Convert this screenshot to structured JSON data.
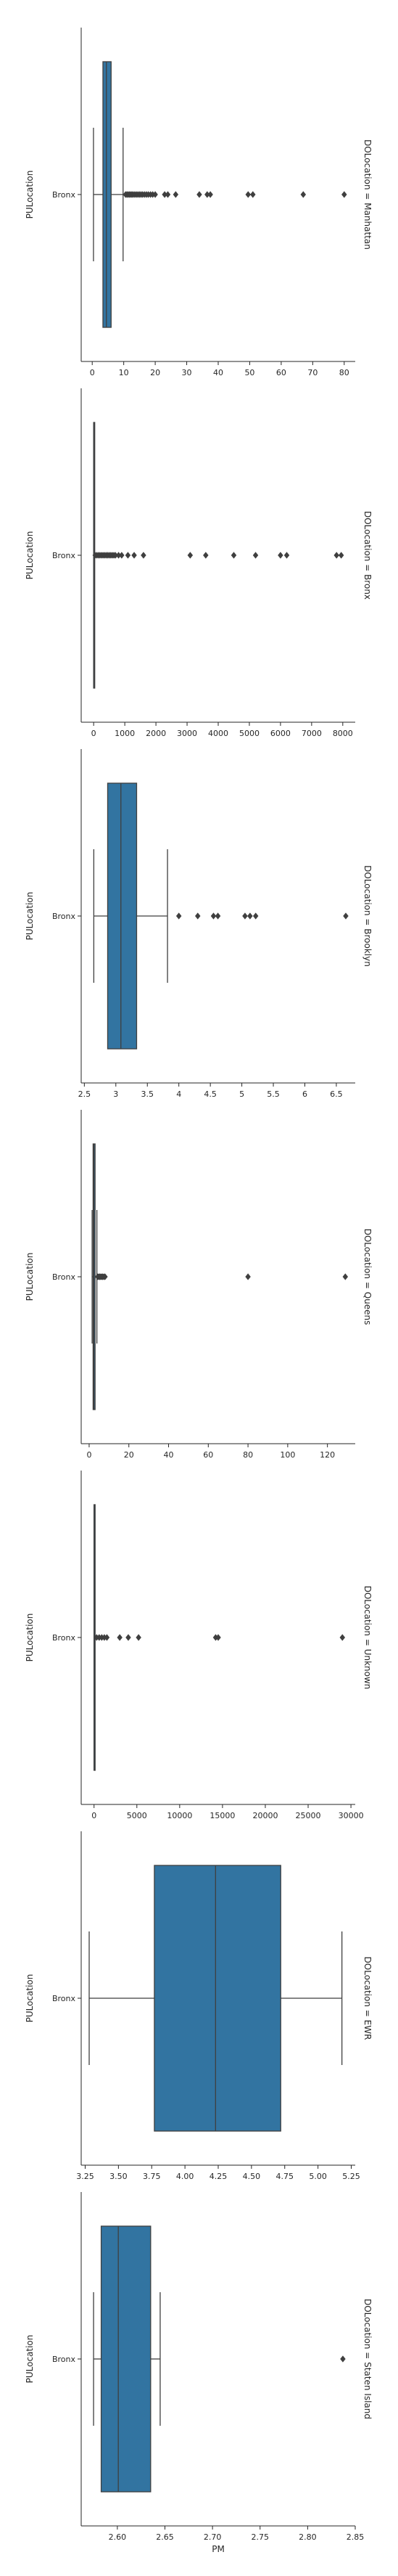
{
  "chart_data": {
    "type": "boxplot",
    "facet_dimension": "DOLocation",
    "xlabel": "PM",
    "ylabel": "PULocation",
    "category": "Bronx",
    "colors": {
      "box": "#3274a1",
      "line": "#3f3f3f",
      "axis": "#262626",
      "outlier": "#3f3f3f"
    },
    "panels": [
      {
        "title": "DOLocation = Manhattan",
        "xlim": [
          -3.5,
          83.5
        ],
        "ticks": [
          0,
          10,
          20,
          30,
          40,
          50,
          60,
          70,
          80
        ],
        "box": {
          "whisker_low": 0.4,
          "q1": 3.4,
          "median": 4.5,
          "q3": 6.0,
          "whisker_high": 9.8
        },
        "outliers": [
          10.6,
          11,
          11.4,
          11.8,
          12.2,
          12.6,
          13,
          13.5,
          14,
          14.5,
          15,
          15.5,
          16,
          16.6,
          17.2,
          17.8,
          18.5,
          19.2,
          20,
          23,
          24,
          26.5,
          34,
          36.5,
          37.5,
          49.5,
          51,
          67,
          80
        ]
      },
      {
        "title": "DOLocation = Bronx",
        "xlim": [
          -400,
          8400
        ],
        "ticks": [
          0,
          1000,
          2000,
          3000,
          4000,
          5000,
          6000,
          7000,
          8000
        ],
        "box": {
          "whisker_low": 0,
          "q1": 0,
          "median": 0,
          "q3": 0,
          "whisker_high": 0
        },
        "outliers": [
          50,
          100,
          150,
          200,
          250,
          300,
          350,
          400,
          450,
          500,
          550,
          600,
          650,
          700,
          800,
          900,
          1100,
          1300,
          1600,
          3100,
          3600,
          4500,
          5200,
          6000,
          6200,
          7800,
          7950
        ]
      },
      {
        "title": "DOLocation = Brooklyn",
        "xlim": [
          2.45,
          6.8
        ],
        "ticks": [
          2.5,
          3.0,
          3.5,
          4.0,
          4.5,
          5.0,
          5.5,
          6.0,
          6.5
        ],
        "box": {
          "whisker_low": 2.65,
          "q1": 2.87,
          "median": 3.08,
          "q3": 3.33,
          "whisker_high": 3.82
        },
        "outliers": [
          4.0,
          4.3,
          4.55,
          4.62,
          5.05,
          5.13,
          5.22,
          6.65
        ]
      },
      {
        "title": "DOLocation = Queens",
        "xlim": [
          -4,
          134
        ],
        "ticks": [
          0,
          20,
          40,
          60,
          80,
          100,
          120
        ],
        "box": {
          "whisker_low": 1.5,
          "q1": 2.0,
          "median": 2.4,
          "q3": 3.0,
          "whisker_high": 3.9
        },
        "outliers": [
          4.3,
          4.8,
          5.3,
          5.8,
          6.3,
          6.8,
          7.4,
          8.0,
          80,
          129
        ]
      },
      {
        "title": "DOLocation = Unknown",
        "xlim": [
          -1500,
          30500
        ],
        "ticks": [
          0,
          5000,
          10000,
          15000,
          20000,
          25000,
          30000
        ],
        "box": {
          "whisker_low": 0,
          "q1": 0,
          "median": 0,
          "q3": 0,
          "whisker_high": 0
        },
        "outliers": [
          300,
          600,
          900,
          1200,
          1500,
          3000,
          4000,
          5200,
          14200,
          14500,
          29000
        ]
      },
      {
        "title": "DOLocation = EWR",
        "xlim": [
          3.22,
          5.28
        ],
        "ticks": [
          3.25,
          3.5,
          3.75,
          4.0,
          4.25,
          4.5,
          4.75,
          5.0,
          5.25
        ],
        "tick_labels": [
          "3.25",
          "3.50",
          "3.75",
          "4.00",
          "4.25",
          "4.50",
          "4.75",
          "5.00",
          "5.25"
        ],
        "box": {
          "whisker_low": 3.28,
          "q1": 3.77,
          "median": 4.23,
          "q3": 4.72,
          "whisker_high": 5.18
        },
        "outliers": []
      },
      {
        "title": "DOLocation = Staten Island",
        "xlim": [
          2.562,
          2.85
        ],
        "ticks": [
          2.6,
          2.65,
          2.7,
          2.75,
          2.8,
          2.85
        ],
        "tick_labels": [
          "2.60",
          "2.65",
          "2.70",
          "2.75",
          "2.80",
          "2.85"
        ],
        "box": {
          "whisker_low": 2.575,
          "q1": 2.583,
          "median": 2.601,
          "q3": 2.635,
          "whisker_high": 2.645
        },
        "outliers": [
          2.837
        ]
      }
    ]
  }
}
